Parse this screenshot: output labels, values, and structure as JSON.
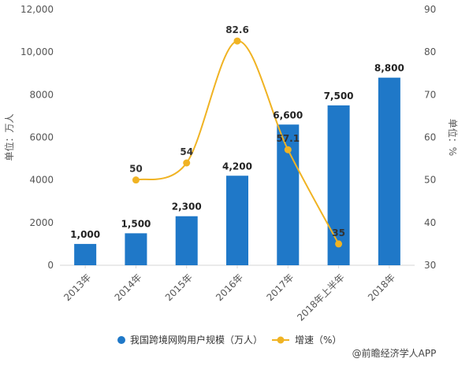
{
  "chart_data": {
    "type": "bar",
    "title": "",
    "categories": [
      "2013年",
      "2014年",
      "2015年",
      "2016年",
      "2017年",
      "2018年上半年",
      "2018年"
    ],
    "series": [
      {
        "name": "我国跨境网购用户规模（万人）",
        "type": "bar",
        "axis": "left",
        "values": [
          1000,
          1500,
          2300,
          4200,
          6600,
          7500,
          8800
        ],
        "labels": [
          "1,000",
          "1,500",
          "2,300",
          "4,200",
          "6,600",
          "7,500",
          "8,800"
        ]
      },
      {
        "name": "增速（%）",
        "type": "line",
        "axis": "right",
        "values": [
          null,
          50,
          54,
          82.6,
          57.1,
          35,
          null
        ],
        "labels": [
          "",
          "50",
          "54",
          "82.6",
          "57.1",
          "35",
          ""
        ]
      }
    ],
    "y_left": {
      "label": "单位：万人",
      "ylim": [
        0,
        12000
      ],
      "ticks": [
        0,
        2000,
        4000,
        6000,
        8000,
        10000,
        12000
      ],
      "tick_labels": [
        "0",
        "2000",
        "4000",
        "6000",
        "8000",
        "10,000",
        "12,000"
      ]
    },
    "y_right": {
      "label": "单位：%",
      "ylim": [
        30,
        90
      ],
      "ticks": [
        30,
        40,
        50,
        60,
        70,
        80,
        90
      ],
      "tick_labels": [
        "30",
        "40",
        "50",
        "60",
        "70",
        "80",
        "90"
      ]
    },
    "grid": false,
    "legend_position": "bottom-center",
    "colors": {
      "bar": "#1f78c8",
      "line": "#f0b323",
      "axis": "#d6d6d6",
      "text": "#555555"
    }
  },
  "legend": {
    "bar_item": "我国跨境网购用户规模（万人）",
    "line_item": "增速（%）"
  },
  "footer": {
    "source": "@前瞻经济学人APP"
  }
}
